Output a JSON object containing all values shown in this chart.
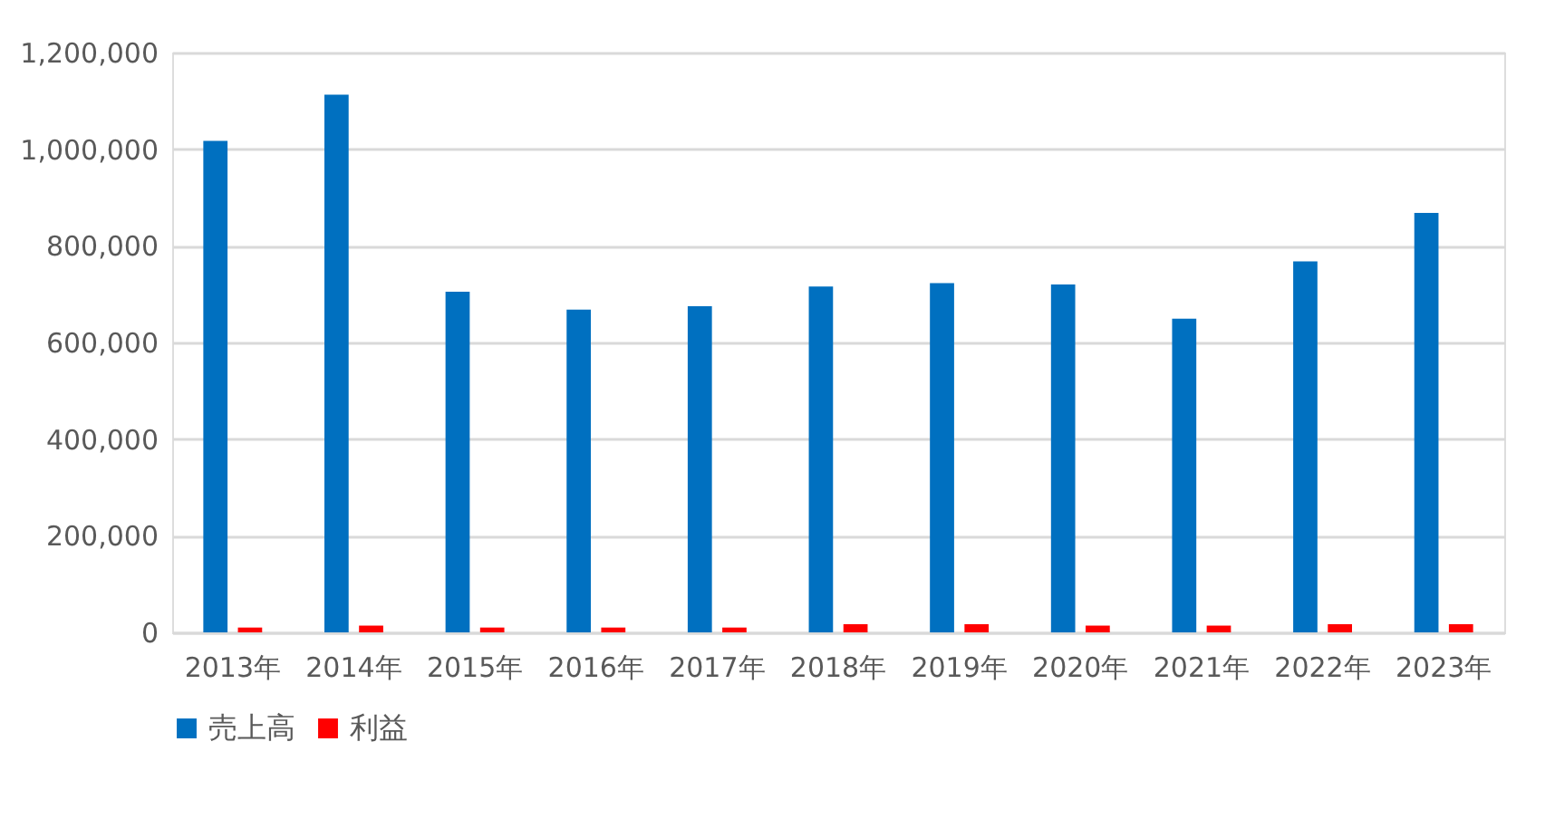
{
  "chart_data": {
    "type": "bar",
    "categories": [
      "2013年",
      "2014年",
      "2015年",
      "2016年",
      "2017年",
      "2018年",
      "2019年",
      "2020年",
      "2021年",
      "2022年",
      "2023年"
    ],
    "series": [
      {
        "name": "売上高",
        "color": "#0070c0",
        "values": [
          1017000,
          1113000,
          705000,
          668000,
          675000,
          716000,
          723000,
          720000,
          649000,
          768000,
          868000
        ]
      },
      {
        "name": "利益",
        "color": "#ff0000",
        "values": [
          10000,
          14000,
          10000,
          10000,
          10000,
          17000,
          17000,
          14000,
          14000,
          17000,
          17000
        ]
      }
    ],
    "ylim": [
      0,
      1200000
    ],
    "yticks": [
      {
        "value": 0,
        "label": "0"
      },
      {
        "value": 200000,
        "label": "200,000"
      },
      {
        "value": 400000,
        "label": "400,000"
      },
      {
        "value": 600000,
        "label": "600,000"
      },
      {
        "value": 800000,
        "label": "800,000"
      },
      {
        "value": 1000000,
        "label": "1,000,000"
      },
      {
        "value": 1200000,
        "label": "1,200,000"
      }
    ],
    "grid": "y",
    "legend": "bottom"
  }
}
